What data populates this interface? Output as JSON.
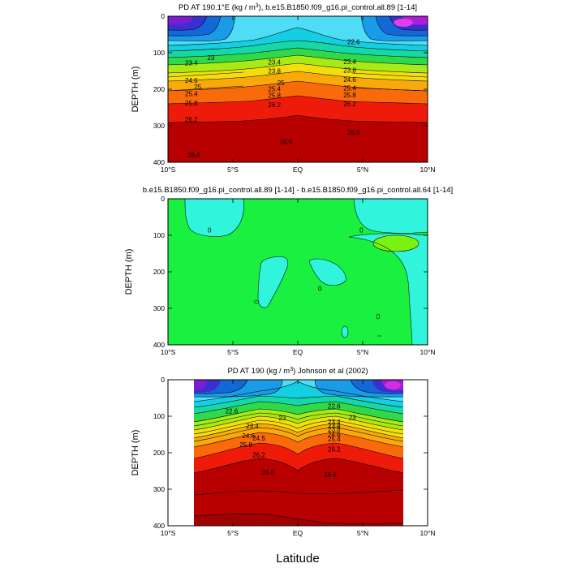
{
  "figure": {
    "x_axis_label": "Latitude"
  },
  "chart_data": [
    {
      "type": "heatmap",
      "title_prefix": "PD AT 190.1°E (kg / m",
      "title_sup": "3",
      "title_suffix": "), b.e15.B1850.f09_g16.pi_control.all.89 [1-14]",
      "ylabel": "DEPTH (m)",
      "xlim": [
        -10,
        10
      ],
      "ylim": [
        0,
        400
      ],
      "y_inverted": true,
      "x_ticks": [
        -10,
        -5,
        0,
        5,
        10
      ],
      "x_tick_labels": [
        "10°S",
        "5°S",
        "EQ",
        "5°N",
        "10°N"
      ],
      "y_ticks": [
        0,
        100,
        200,
        300,
        400
      ],
      "y_tick_labels": [
        "0",
        "100",
        "200",
        "300",
        "400"
      ],
      "data_x_range": [
        -10,
        10
      ],
      "contour_labels": [
        {
          "text": "22.6",
          "x": 4.3,
          "y": 70
        },
        {
          "text": "23",
          "x": -6.7,
          "y": 113
        },
        {
          "text": "23.4",
          "x": -8.2,
          "y": 128
        },
        {
          "text": "23.4",
          "x": -1.8,
          "y": 126
        },
        {
          "text": "23.4",
          "x": 4.0,
          "y": 124
        },
        {
          "text": "23.8",
          "x": -1.8,
          "y": 150
        },
        {
          "text": "23.8",
          "x": 4.0,
          "y": 148
        },
        {
          "text": "24.6",
          "x": -8.2,
          "y": 175
        },
        {
          "text": "24.6",
          "x": 4.0,
          "y": 173
        },
        {
          "text": "25",
          "x": -1.3,
          "y": 182
        },
        {
          "text": "25",
          "x": -7.7,
          "y": 193
        },
        {
          "text": "25.4",
          "x": -1.8,
          "y": 199
        },
        {
          "text": "25.4",
          "x": 4.0,
          "y": 197
        },
        {
          "text": "25.4",
          "x": -8.2,
          "y": 212
        },
        {
          "text": "25.8",
          "x": -1.8,
          "y": 217
        },
        {
          "text": "25.8",
          "x": 4.0,
          "y": 215
        },
        {
          "text": "25.8",
          "x": -8.2,
          "y": 238
        },
        {
          "text": "26.2",
          "x": -1.8,
          "y": 242
        },
        {
          "text": "26.2",
          "x": 4.0,
          "y": 240
        },
        {
          "text": "26.2",
          "x": -8.2,
          "y": 282
        },
        {
          "text": "26.6",
          "x": 4.3,
          "y": 318
        },
        {
          "text": "26.6",
          "x": -0.9,
          "y": 343
        },
        {
          "text": "26.8",
          "x": -8.0,
          "y": 380
        }
      ]
    },
    {
      "type": "heatmap",
      "title": "b.e15.B1850.f09_g16.pi_control.all.89 [1-14] - b.e15.B1850.f09_g16.pi_control.all.64 [1-14]",
      "ylabel": "DEPTH (m)",
      "xlim": [
        -10,
        10
      ],
      "ylim": [
        0,
        400
      ],
      "y_inverted": true,
      "x_ticks": [
        -10,
        -5,
        0,
        5,
        10
      ],
      "x_tick_labels": [
        "10°S",
        "5°S",
        "EQ",
        "5°N",
        "10°N"
      ],
      "y_ticks": [
        0,
        100,
        200,
        300,
        400
      ],
      "y_tick_labels": [
        "0",
        "100",
        "200",
        "300",
        "400"
      ],
      "data_x_range": [
        -10,
        10
      ],
      "contour_labels": [
        {
          "text": "0",
          "x": -6.8,
          "y": 85
        },
        {
          "text": "0",
          "x": 4.9,
          "y": 85
        },
        {
          "text": "0",
          "x": 1.7,
          "y": 246
        }
      ]
    },
    {
      "type": "heatmap",
      "title_prefix": "PD AT 190 (kg / m",
      "title_sup": "3",
      "title_suffix": ") Johnson et al (2002)",
      "ylabel": "DEPTH (m)",
      "xlim": [
        -10,
        10
      ],
      "ylim": [
        0,
        400
      ],
      "y_inverted": true,
      "x_ticks": [
        -10,
        -5,
        0,
        5,
        10
      ],
      "x_tick_labels": [
        "10°S",
        "5°S",
        "EQ",
        "5°N",
        "10°N"
      ],
      "y_ticks": [
        0,
        100,
        200,
        300,
        400
      ],
      "y_tick_labels": [
        "0",
        "100",
        "200",
        "300",
        "400"
      ],
      "data_x_range": [
        -8,
        8
      ],
      "contour_labels": [
        {
          "text": "22.6",
          "x": -5.1,
          "y": 85
        },
        {
          "text": "22.6",
          "x": 2.8,
          "y": 72
        },
        {
          "text": "23",
          "x": -1.2,
          "y": 104
        },
        {
          "text": "23",
          "x": 4.2,
          "y": 103
        },
        {
          "text": "23.4",
          "x": -3.5,
          "y": 127
        },
        {
          "text": "23.4",
          "x": 2.8,
          "y": 115
        },
        {
          "text": "23.4",
          "x": 2.8,
          "y": 125
        },
        {
          "text": "23.8",
          "x": 2.8,
          "y": 135
        },
        {
          "text": "24.6",
          "x": 2.8,
          "y": 150
        },
        {
          "text": "24.6",
          "x": -3.8,
          "y": 153
        },
        {
          "text": "24.5",
          "x": -3.0,
          "y": 160
        },
        {
          "text": "25.4",
          "x": 2.8,
          "y": 162
        },
        {
          "text": "25.8",
          "x": -4.0,
          "y": 178
        },
        {
          "text": "26.2",
          "x": 2.8,
          "y": 190
        },
        {
          "text": "26.2",
          "x": -3.0,
          "y": 205
        },
        {
          "text": "26.6",
          "x": -2.3,
          "y": 253
        },
        {
          "text": "26.6",
          "x": 2.5,
          "y": 260
        }
      ]
    }
  ]
}
